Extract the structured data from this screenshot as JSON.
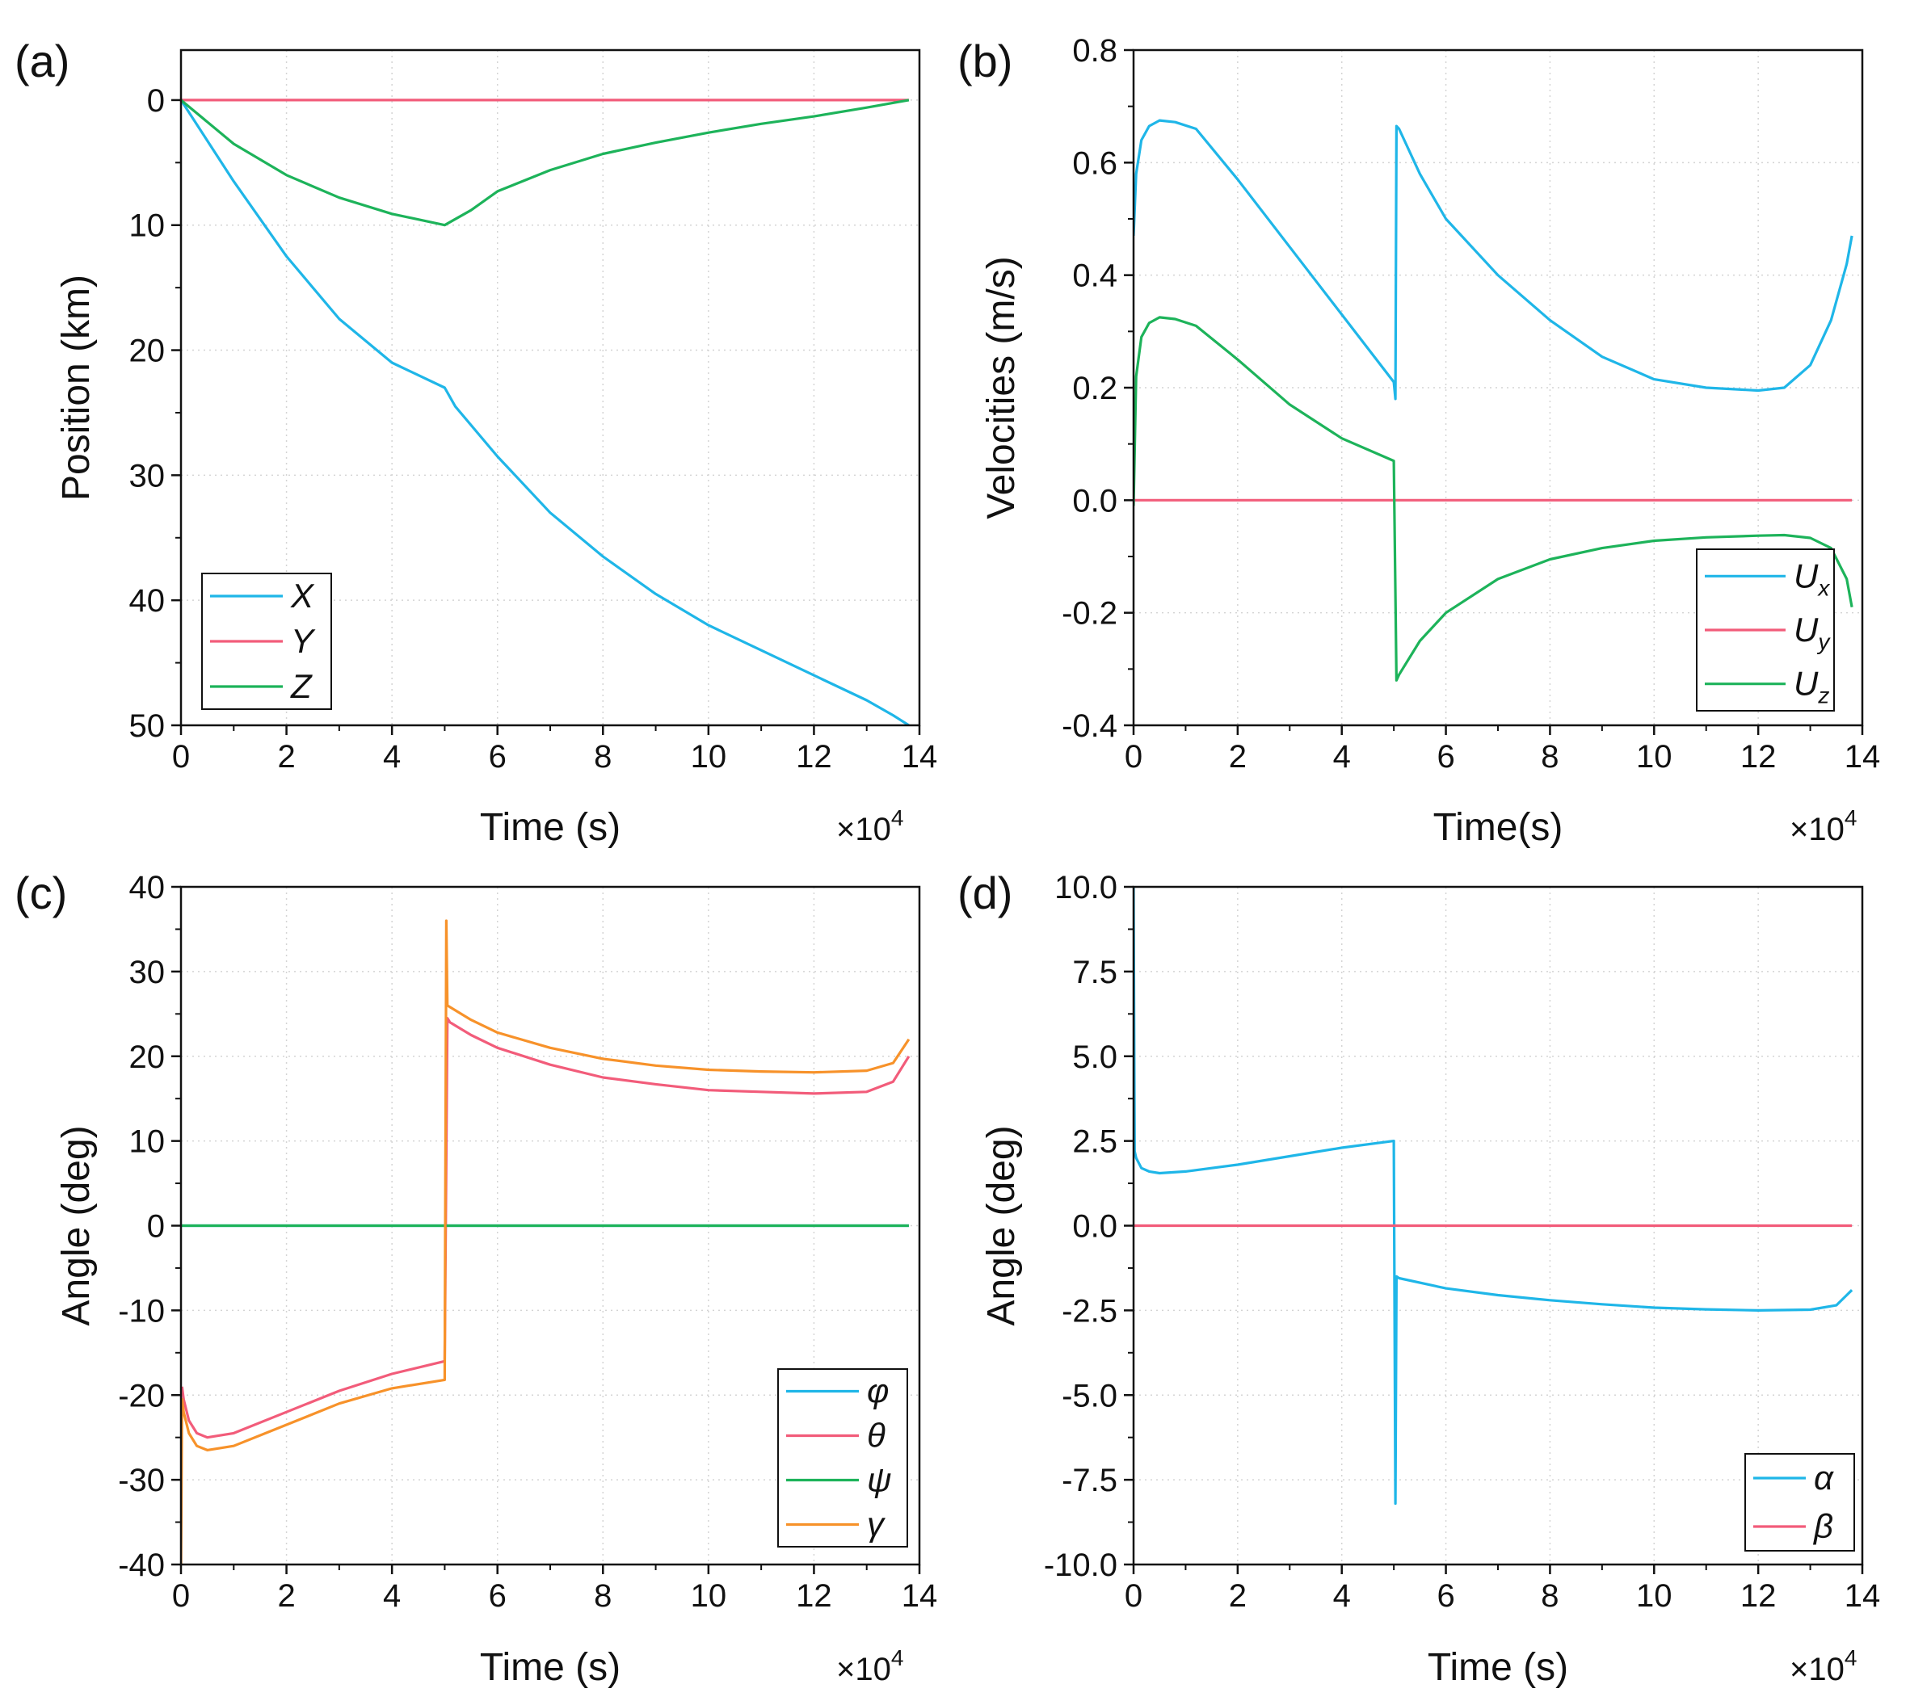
{
  "chart_data": [
    {
      "id": "a",
      "type": "line",
      "panel_label": "(a)",
      "xlabel": "Time (s)",
      "ylabel": "Position (km)",
      "x_multiplier": "×10",
      "x_multiplier_exp": "4",
      "xlim": [
        0,
        14
      ],
      "ylim": [
        50,
        -4
      ],
      "y_inverted": true,
      "xticks": [
        0,
        2,
        4,
        6,
        8,
        10,
        12,
        14
      ],
      "xtick_labels": [
        "0",
        "2",
        "4",
        "6",
        "8",
        "10",
        "12",
        "14"
      ],
      "yticks": [
        0,
        10,
        20,
        30,
        40,
        50
      ],
      "ytick_labels": [
        "0",
        "10",
        "20",
        "30",
        "40",
        "50"
      ],
      "grid": true,
      "legend_position": "bottom-left",
      "series": [
        {
          "name": "X",
          "color": "#1fb6e8",
          "x": [
            0,
            1,
            2,
            3,
            4,
            5,
            5.2,
            6,
            7,
            8,
            9,
            10,
            11,
            12,
            13,
            13.5,
            13.8
          ],
          "y": [
            0,
            6.5,
            12.5,
            17.5,
            21,
            23,
            24.5,
            28.5,
            33,
            36.5,
            39.5,
            42,
            44,
            46,
            48,
            49.2,
            50
          ]
        },
        {
          "name": "Y",
          "color": "#f25c7a",
          "x": [
            0,
            13.8
          ],
          "y": [
            0,
            0
          ]
        },
        {
          "name": "Z",
          "color": "#1db35a",
          "x": [
            0,
            1,
            2,
            3,
            4,
            5,
            5.5,
            6,
            7,
            8,
            9,
            10,
            11,
            12,
            13,
            13.8
          ],
          "y": [
            0,
            3.5,
            6,
            7.8,
            9.1,
            10,
            8.8,
            7.3,
            5.6,
            4.3,
            3.4,
            2.6,
            1.9,
            1.3,
            0.6,
            0
          ]
        }
      ]
    },
    {
      "id": "b",
      "type": "line",
      "panel_label": "(b)",
      "xlabel": "Time(s)",
      "ylabel": "Velocities (m/s)",
      "x_multiplier": "×10",
      "x_multiplier_exp": "4",
      "xlim": [
        0,
        14
      ],
      "ylim": [
        -0.4,
        0.8
      ],
      "xticks": [
        0,
        2,
        4,
        6,
        8,
        10,
        12,
        14
      ],
      "xtick_labels": [
        "0",
        "2",
        "4",
        "6",
        "8",
        "10",
        "12",
        "14"
      ],
      "yticks": [
        -0.4,
        -0.2,
        0.0,
        0.2,
        0.4,
        0.6,
        0.8
      ],
      "ytick_labels": [
        "-0.4",
        "-0.2",
        "0.0",
        "0.2",
        "0.4",
        "0.6",
        "0.8"
      ],
      "grid": true,
      "legend_position": "bottom-right",
      "series": [
        {
          "name": "U",
          "sub": "x",
          "color": "#1fb6e8",
          "x": [
            0,
            0.05,
            0.15,
            0.3,
            0.5,
            0.8,
            1.2,
            2,
            3,
            4,
            5,
            5.03,
            5.05,
            5.1,
            5.5,
            6,
            7,
            8,
            9,
            10,
            11,
            12,
            12.5,
            13,
            13.4,
            13.7,
            13.8
          ],
          "y": [
            0.47,
            0.58,
            0.64,
            0.665,
            0.675,
            0.672,
            0.66,
            0.57,
            0.45,
            0.33,
            0.21,
            0.18,
            0.665,
            0.66,
            0.58,
            0.5,
            0.4,
            0.32,
            0.255,
            0.215,
            0.2,
            0.195,
            0.2,
            0.24,
            0.32,
            0.42,
            0.47
          ]
        },
        {
          "name": "U",
          "sub": "y",
          "color": "#f25c7a",
          "x": [
            0,
            13.8
          ],
          "y": [
            0,
            0
          ]
        },
        {
          "name": "U",
          "sub": "z",
          "color": "#1db35a",
          "x": [
            0,
            0.05,
            0.15,
            0.3,
            0.5,
            0.8,
            1.2,
            2,
            3,
            4,
            5,
            5.05,
            5.1,
            5.5,
            6,
            7,
            8,
            9,
            10,
            11,
            12,
            12.5,
            13,
            13.4,
            13.7,
            13.8
          ],
          "y": [
            -0.01,
            0.22,
            0.29,
            0.315,
            0.325,
            0.322,
            0.31,
            0.25,
            0.17,
            0.11,
            0.07,
            -0.32,
            -0.31,
            -0.25,
            -0.2,
            -0.14,
            -0.105,
            -0.085,
            -0.072,
            -0.066,
            -0.063,
            -0.062,
            -0.067,
            -0.085,
            -0.14,
            -0.19
          ]
        }
      ]
    },
    {
      "id": "c",
      "type": "line",
      "panel_label": "(c)",
      "xlabel": "Time (s)",
      "ylabel": "Angle (deg)",
      "x_multiplier": "×10",
      "x_multiplier_exp": "4",
      "xlim": [
        0,
        14
      ],
      "ylim": [
        -40,
        40
      ],
      "xticks": [
        0,
        2,
        4,
        6,
        8,
        10,
        12,
        14
      ],
      "xtick_labels": [
        "0",
        "2",
        "4",
        "6",
        "8",
        "10",
        "12",
        "14"
      ],
      "yticks": [
        -40,
        -30,
        -20,
        -10,
        0,
        10,
        20,
        30,
        40
      ],
      "ytick_labels": [
        "-40",
        "-30",
        "-20",
        "-10",
        "0",
        "10",
        "20",
        "30",
        "40"
      ],
      "grid": true,
      "legend_position": "bottom-right",
      "series": [
        {
          "name": "φ",
          "color": "#1fb6e8",
          "x": [
            0,
            13.8
          ],
          "y": [
            0,
            0
          ]
        },
        {
          "name": "θ",
          "color": "#f25c7a",
          "x": [
            0.02,
            0.05,
            0.15,
            0.3,
            0.5,
            1,
            2,
            3,
            4,
            5,
            5.05,
            5.1,
            5.5,
            6,
            7,
            8,
            9,
            10,
            11,
            12,
            13,
            13.5,
            13.8
          ],
          "y": [
            -19,
            -20.5,
            -23,
            -24.5,
            -25,
            -24.5,
            -22,
            -19.5,
            -17.5,
            -16,
            24.5,
            24,
            22.5,
            21,
            19,
            17.5,
            16.7,
            16,
            15.8,
            15.6,
            15.8,
            17,
            20
          ]
        },
        {
          "name": "ψ",
          "color": "#1db35a",
          "x": [
            0,
            13.8
          ],
          "y": [
            0,
            0
          ]
        },
        {
          "name": "γ",
          "color": "#f7922a",
          "x": [
            0,
            0.02,
            0.05,
            0.15,
            0.3,
            0.5,
            1,
            2,
            3,
            4,
            5,
            5.03,
            5.05,
            5.1,
            5.5,
            6,
            7,
            8,
            9,
            10,
            11,
            12,
            13,
            13.5,
            13.8
          ],
          "y": [
            -40,
            -20.5,
            -22,
            -24.5,
            -26,
            -26.5,
            -26,
            -23.5,
            -21,
            -19.2,
            -18.2,
            36,
            26,
            25.8,
            24.3,
            22.8,
            21,
            19.7,
            18.9,
            18.4,
            18.2,
            18.1,
            18.3,
            19.2,
            22
          ]
        }
      ]
    },
    {
      "id": "d",
      "type": "line",
      "panel_label": "(d)",
      "xlabel": "Time (s)",
      "ylabel": "Angle (deg)",
      "x_multiplier": "×10",
      "x_multiplier_exp": "4",
      "xlim": [
        0,
        14
      ],
      "ylim": [
        -10,
        10
      ],
      "xticks": [
        0,
        2,
        4,
        6,
        8,
        10,
        12,
        14
      ],
      "xtick_labels": [
        "0",
        "2",
        "4",
        "6",
        "8",
        "10",
        "12",
        "14"
      ],
      "yticks": [
        -10,
        -7.5,
        -5,
        -2.5,
        0,
        2.5,
        5,
        7.5,
        10
      ],
      "ytick_labels": [
        "-10.0",
        "-7.5",
        "-5.0",
        "-2.5",
        "0.0",
        "2.5",
        "5.0",
        "7.5",
        "10.0"
      ],
      "grid": true,
      "legend_position": "bottom-right",
      "series": [
        {
          "name": "α",
          "color": "#1fb6e8",
          "x": [
            0,
            0.02,
            0.05,
            0.15,
            0.3,
            0.5,
            1,
            2,
            3,
            4,
            5,
            5.03,
            5.05,
            5.1,
            6,
            7,
            8,
            9,
            10,
            11,
            12,
            13,
            13.5,
            13.8
          ],
          "y": [
            10,
            2.2,
            2,
            1.7,
            1.6,
            1.55,
            1.6,
            1.8,
            2.05,
            2.3,
            2.5,
            -8.2,
            -1.5,
            -1.55,
            -1.85,
            -2.05,
            -2.2,
            -2.32,
            -2.42,
            -2.47,
            -2.5,
            -2.48,
            -2.35,
            -1.9
          ]
        },
        {
          "name": "β",
          "color": "#f25c7a",
          "x": [
            0,
            13.8
          ],
          "y": [
            0,
            0
          ]
        }
      ]
    }
  ]
}
